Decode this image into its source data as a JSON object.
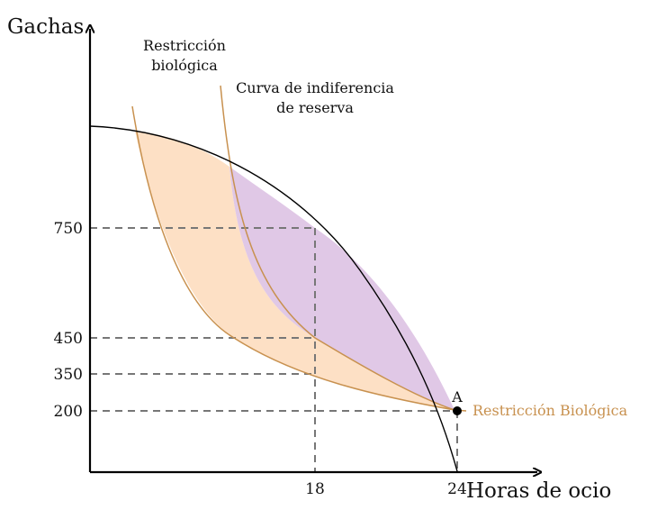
{
  "figure": {
    "y_axis_title": "Gachas",
    "x_axis_title": "Horas de ocio",
    "y_ticks": [
      {
        "label": "750",
        "value": 750
      },
      {
        "label": "450",
        "value": 450
      },
      {
        "label": "350",
        "value": 350
      },
      {
        "label": "200",
        "value": 200
      }
    ],
    "x_ticks": [
      {
        "label": "18",
        "value": 18
      },
      {
        "label": "24",
        "value": 24
      }
    ],
    "labels": {
      "biological_line1": "Restricción",
      "biological_line2": "biológica",
      "reserve_line1": "Curva de indiferencia",
      "reserve_line2": "de reserva",
      "point_a": "A",
      "biological_right": "Restricción Biológica"
    },
    "colors": {
      "feasible_fill": "#fde0c5",
      "surplus_fill": "#e0c8e6",
      "curve_orange": "#c8914f",
      "frontier": "#000000",
      "guides": "#777777"
    }
  }
}
